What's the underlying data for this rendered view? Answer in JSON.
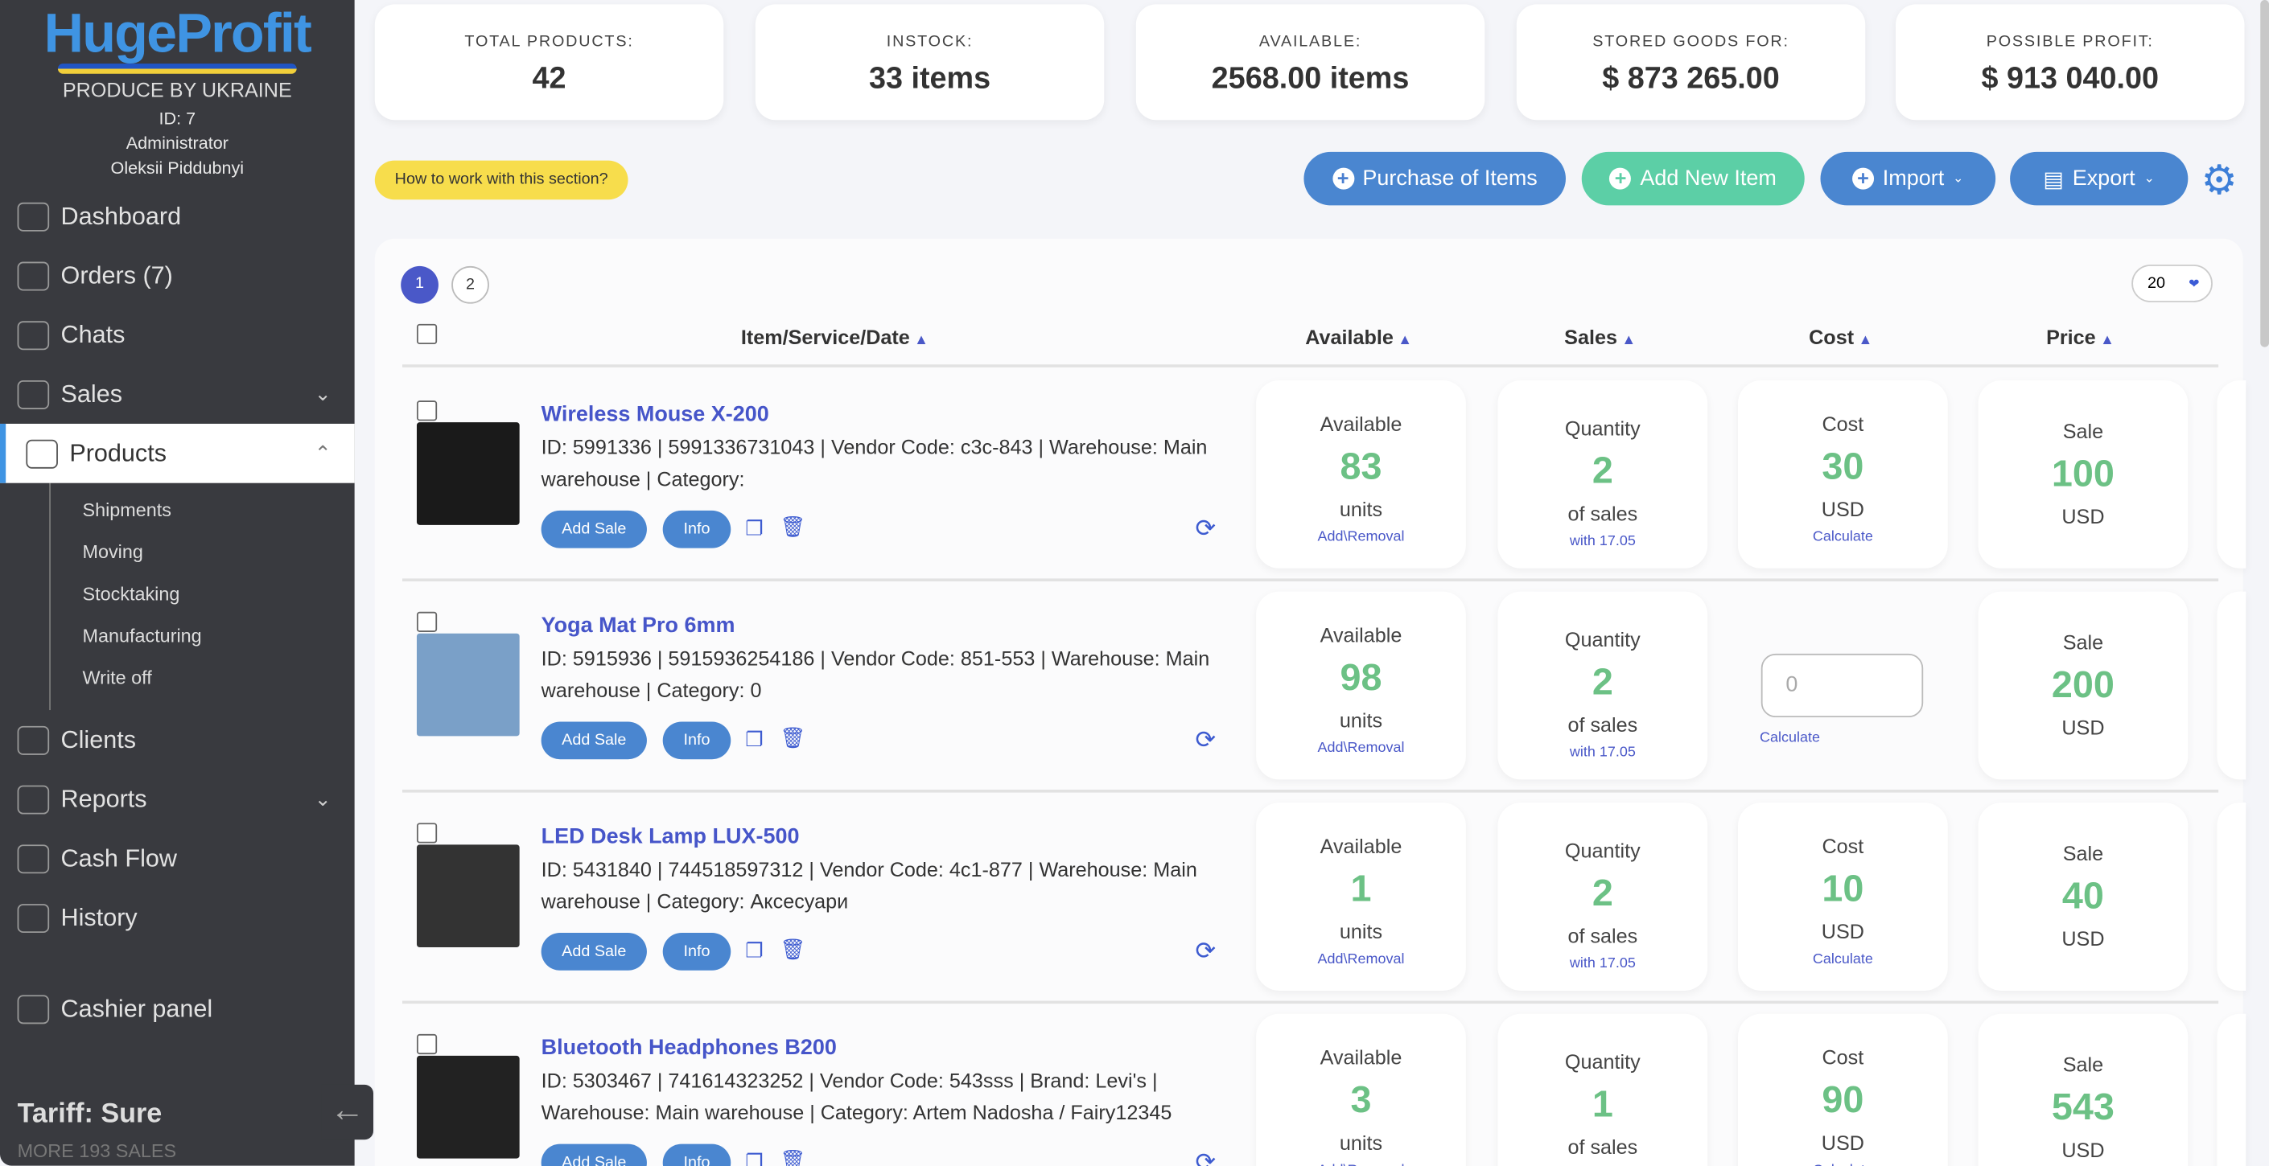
{
  "sidebar": {
    "logo": "HugeProfit",
    "tagline": "PRODUCE BY UKRAINE",
    "id": "ID: 7",
    "role": "Administrator",
    "user": "Oleksii Piddubnyi",
    "items": [
      {
        "label": "Dashboard"
      },
      {
        "label": "Orders (7)"
      },
      {
        "label": "Chats"
      },
      {
        "label": "Sales"
      },
      {
        "label": "Products"
      }
    ],
    "sub": [
      "Shipments",
      "Moving",
      "Stocktaking",
      "Manufacturing",
      "Write off"
    ],
    "items2": [
      {
        "label": "Clients"
      },
      {
        "label": "Reports"
      },
      {
        "label": "Cash Flow"
      },
      {
        "label": "History"
      }
    ],
    "cashier": "Cashier panel",
    "tariff": "Tariff: Sure",
    "more": "MORE 193 SALES"
  },
  "stats": [
    {
      "label": "TOTAL PRODUCTS:",
      "value": "42"
    },
    {
      "label": "INSTOCK:",
      "value": "33 items"
    },
    {
      "label": "AVAILABLE:",
      "value": "2568.00 items"
    },
    {
      "label": "STORED GOODS FOR:",
      "value": "$ 873 265.00"
    },
    {
      "label": "POSSIBLE PROFIT:",
      "value": "$ 913 040.00"
    }
  ],
  "toolbar": {
    "help": "How to work with this section?",
    "purchase": "Purchase of Items",
    "add": "Add New Item",
    "import": "Import",
    "export": "Export"
  },
  "pagination": {
    "pages": [
      "1",
      "2"
    ],
    "per_page": "20"
  },
  "columns": {
    "item": "Item/Service/Date",
    "available": "Available",
    "sales": "Sales",
    "cost": "Cost",
    "price": "Price"
  },
  "labels": {
    "add_sale": "Add Sale",
    "info": "Info",
    "available": "Available",
    "units": "units",
    "add_removal": "Add\\Removal",
    "quantity": "Quantity",
    "of_sales": "of sales",
    "cost": "Cost",
    "usd": "USD",
    "calculate": "Calculate",
    "sale": "Sale"
  },
  "rows": [
    {
      "name": "Wireless Mouse X-200",
      "desc": "ID: 5991336 | 5991336731043 | Vendor Code: c3c-843 | Warehouse: Main warehouse | Category:",
      "available": "83",
      "sales": "2",
      "since": "with 17.05",
      "cost": "30",
      "price": "100",
      "thumb": "#1a1a1a"
    },
    {
      "name": "Yoga Mat Pro 6mm",
      "desc": "ID: 5915936 | 5915936254186 | Vendor Code: 851-553 | Warehouse: Main warehouse | Category: 0",
      "available": "98",
      "sales": "2",
      "since": "with 17.05",
      "cost": "",
      "cost_placeholder": "0",
      "price": "200",
      "thumb": "#7aa0c8"
    },
    {
      "name": "LED Desk Lamp LUX-500",
      "desc": "ID: 5431840 | 744518597312 | Vendor Code: 4c1-877 | Warehouse: Main warehouse | Category: Аксесуари",
      "available": "1",
      "sales": "2",
      "since": "with 17.05",
      "cost": "10",
      "price": "40",
      "thumb": "#333"
    },
    {
      "name": "Bluetooth Headphones B200",
      "desc": "ID: 5303467 | 741614323252 | Vendor Code: 543sss | Brand: Levi's | Warehouse: Main warehouse | Category: Artem Nadosha / Fairy12345",
      "available": "3",
      "sales": "1",
      "since": "",
      "cost": "90",
      "price": "543",
      "thumb": "#222"
    }
  ]
}
